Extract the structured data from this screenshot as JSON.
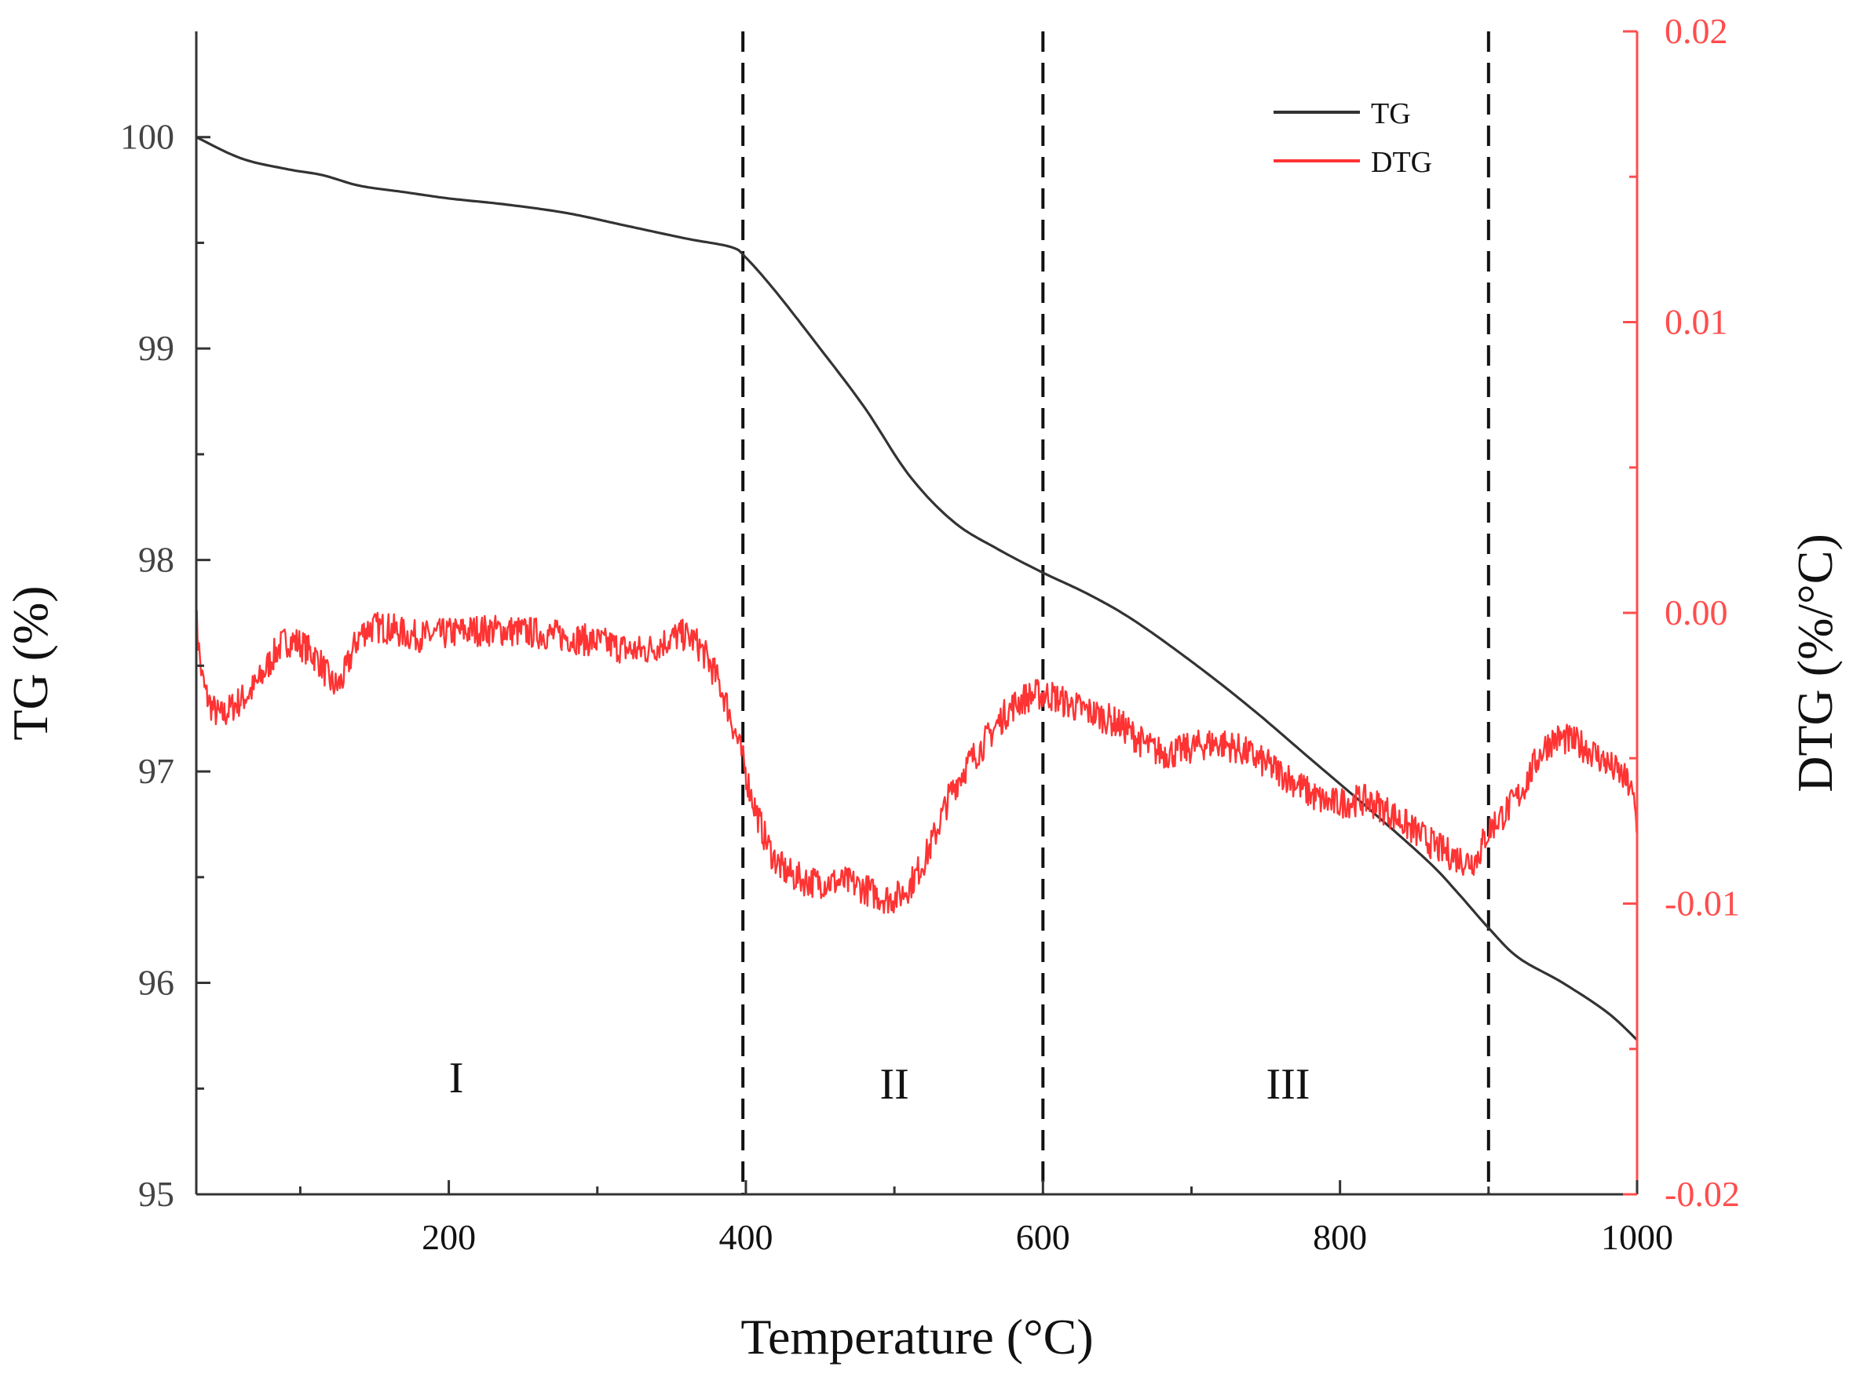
{
  "chart_data": {
    "type": "line",
    "xlabel": "Temperature (°C)",
    "ylabel_left": "TG (%)",
    "ylabel_right": "DTG (%/°C)",
    "xlim": [
      30,
      1000
    ],
    "ylim_left": [
      95,
      100.5
    ],
    "ylim_right": [
      -0.02,
      0.02
    ],
    "x_ticks": [
      "200",
      "400",
      "600",
      "800",
      "1000"
    ],
    "y_left_ticks": [
      "95",
      "96",
      "97",
      "98",
      "99",
      "100"
    ],
    "y_right_ticks": [
      "-0.02",
      "-0.01",
      "0.00",
      "0.01",
      "0.02"
    ],
    "grid": false,
    "legend_position": "top-right",
    "colors": {
      "TG": "#333333",
      "DTG": "#ff3333",
      "right_axis": "#ff4d4d",
      "axis": "#333333"
    },
    "vlines": [
      398,
      600,
      900
    ],
    "regions": [
      {
        "label": "I",
        "x": 205,
        "y": 95.55
      },
      {
        "label": "II",
        "x": 500,
        "y": 95.52
      },
      {
        "label": "III",
        "x": 765,
        "y": 95.52
      }
    ],
    "series": [
      {
        "name": "TG",
        "axis": "left",
        "x": [
          30,
          60,
          90,
          115,
          140,
          170,
          200,
          240,
          280,
          320,
          360,
          390,
          400,
          420,
          450,
          480,
          510,
          540,
          570,
          600,
          630,
          660,
          700,
          740,
          780,
          820,
          860,
          880,
          900,
          920,
          950,
          980,
          1000
        ],
        "y": [
          100.0,
          99.9,
          99.85,
          99.82,
          99.77,
          99.74,
          99.71,
          99.68,
          99.64,
          99.58,
          99.52,
          99.48,
          99.43,
          99.27,
          99.0,
          98.72,
          98.4,
          98.18,
          98.05,
          97.94,
          97.84,
          97.72,
          97.52,
          97.3,
          97.06,
          96.82,
          96.57,
          96.42,
          96.26,
          96.12,
          96.0,
          95.86,
          95.73
        ]
      },
      {
        "name": "DTG",
        "axis": "right",
        "x": [
          30,
          35,
          45,
          55,
          70,
          90,
          110,
          125,
          140,
          155,
          180,
          220,
          260,
          300,
          330,
          360,
          380,
          395,
          405,
          420,
          440,
          470,
          500,
          520,
          540,
          560,
          580,
          600,
          620,
          650,
          680,
          720,
          760,
          790,
          820,
          850,
          870,
          890,
          900,
          920,
          940,
          960,
          980,
          995,
          1000
        ],
        "y": [
          -0.0002,
          -0.0025,
          -0.0035,
          -0.0032,
          -0.0025,
          -0.001,
          -0.0015,
          -0.0025,
          -0.0008,
          -0.0005,
          -0.0008,
          -0.0006,
          -0.0007,
          -0.001,
          -0.0013,
          -0.0008,
          -0.0022,
          -0.0045,
          -0.0065,
          -0.0085,
          -0.0092,
          -0.0093,
          -0.0098,
          -0.0085,
          -0.006,
          -0.0045,
          -0.0032,
          -0.0028,
          -0.0032,
          -0.0038,
          -0.0048,
          -0.0045,
          -0.0055,
          -0.0065,
          -0.0065,
          -0.0075,
          -0.0082,
          -0.0085,
          -0.0075,
          -0.0063,
          -0.0045,
          -0.0045,
          -0.0052,
          -0.006,
          -0.0075
        ]
      }
    ]
  }
}
